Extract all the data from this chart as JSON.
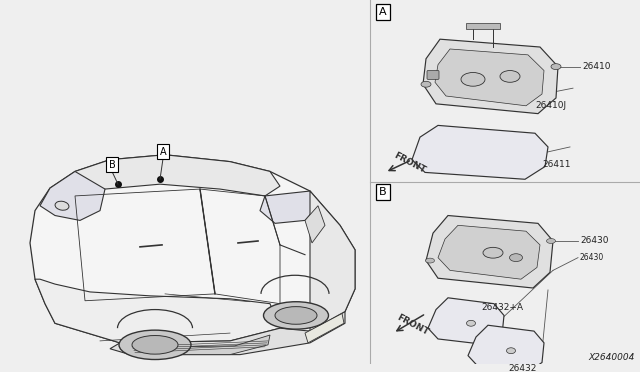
{
  "bg_color": "#efefef",
  "diagram_id": "X2640004",
  "part_numbers_A": [
    "26410",
    "26410J",
    "26411"
  ],
  "part_numbers_B": [
    "26430",
    "26432+A",
    "26432"
  ],
  "divider_color": "#aaaaaa",
  "line_color": "#555555",
  "text_color": "#222222",
  "car_color": "#444444",
  "part_color": "#444444"
}
